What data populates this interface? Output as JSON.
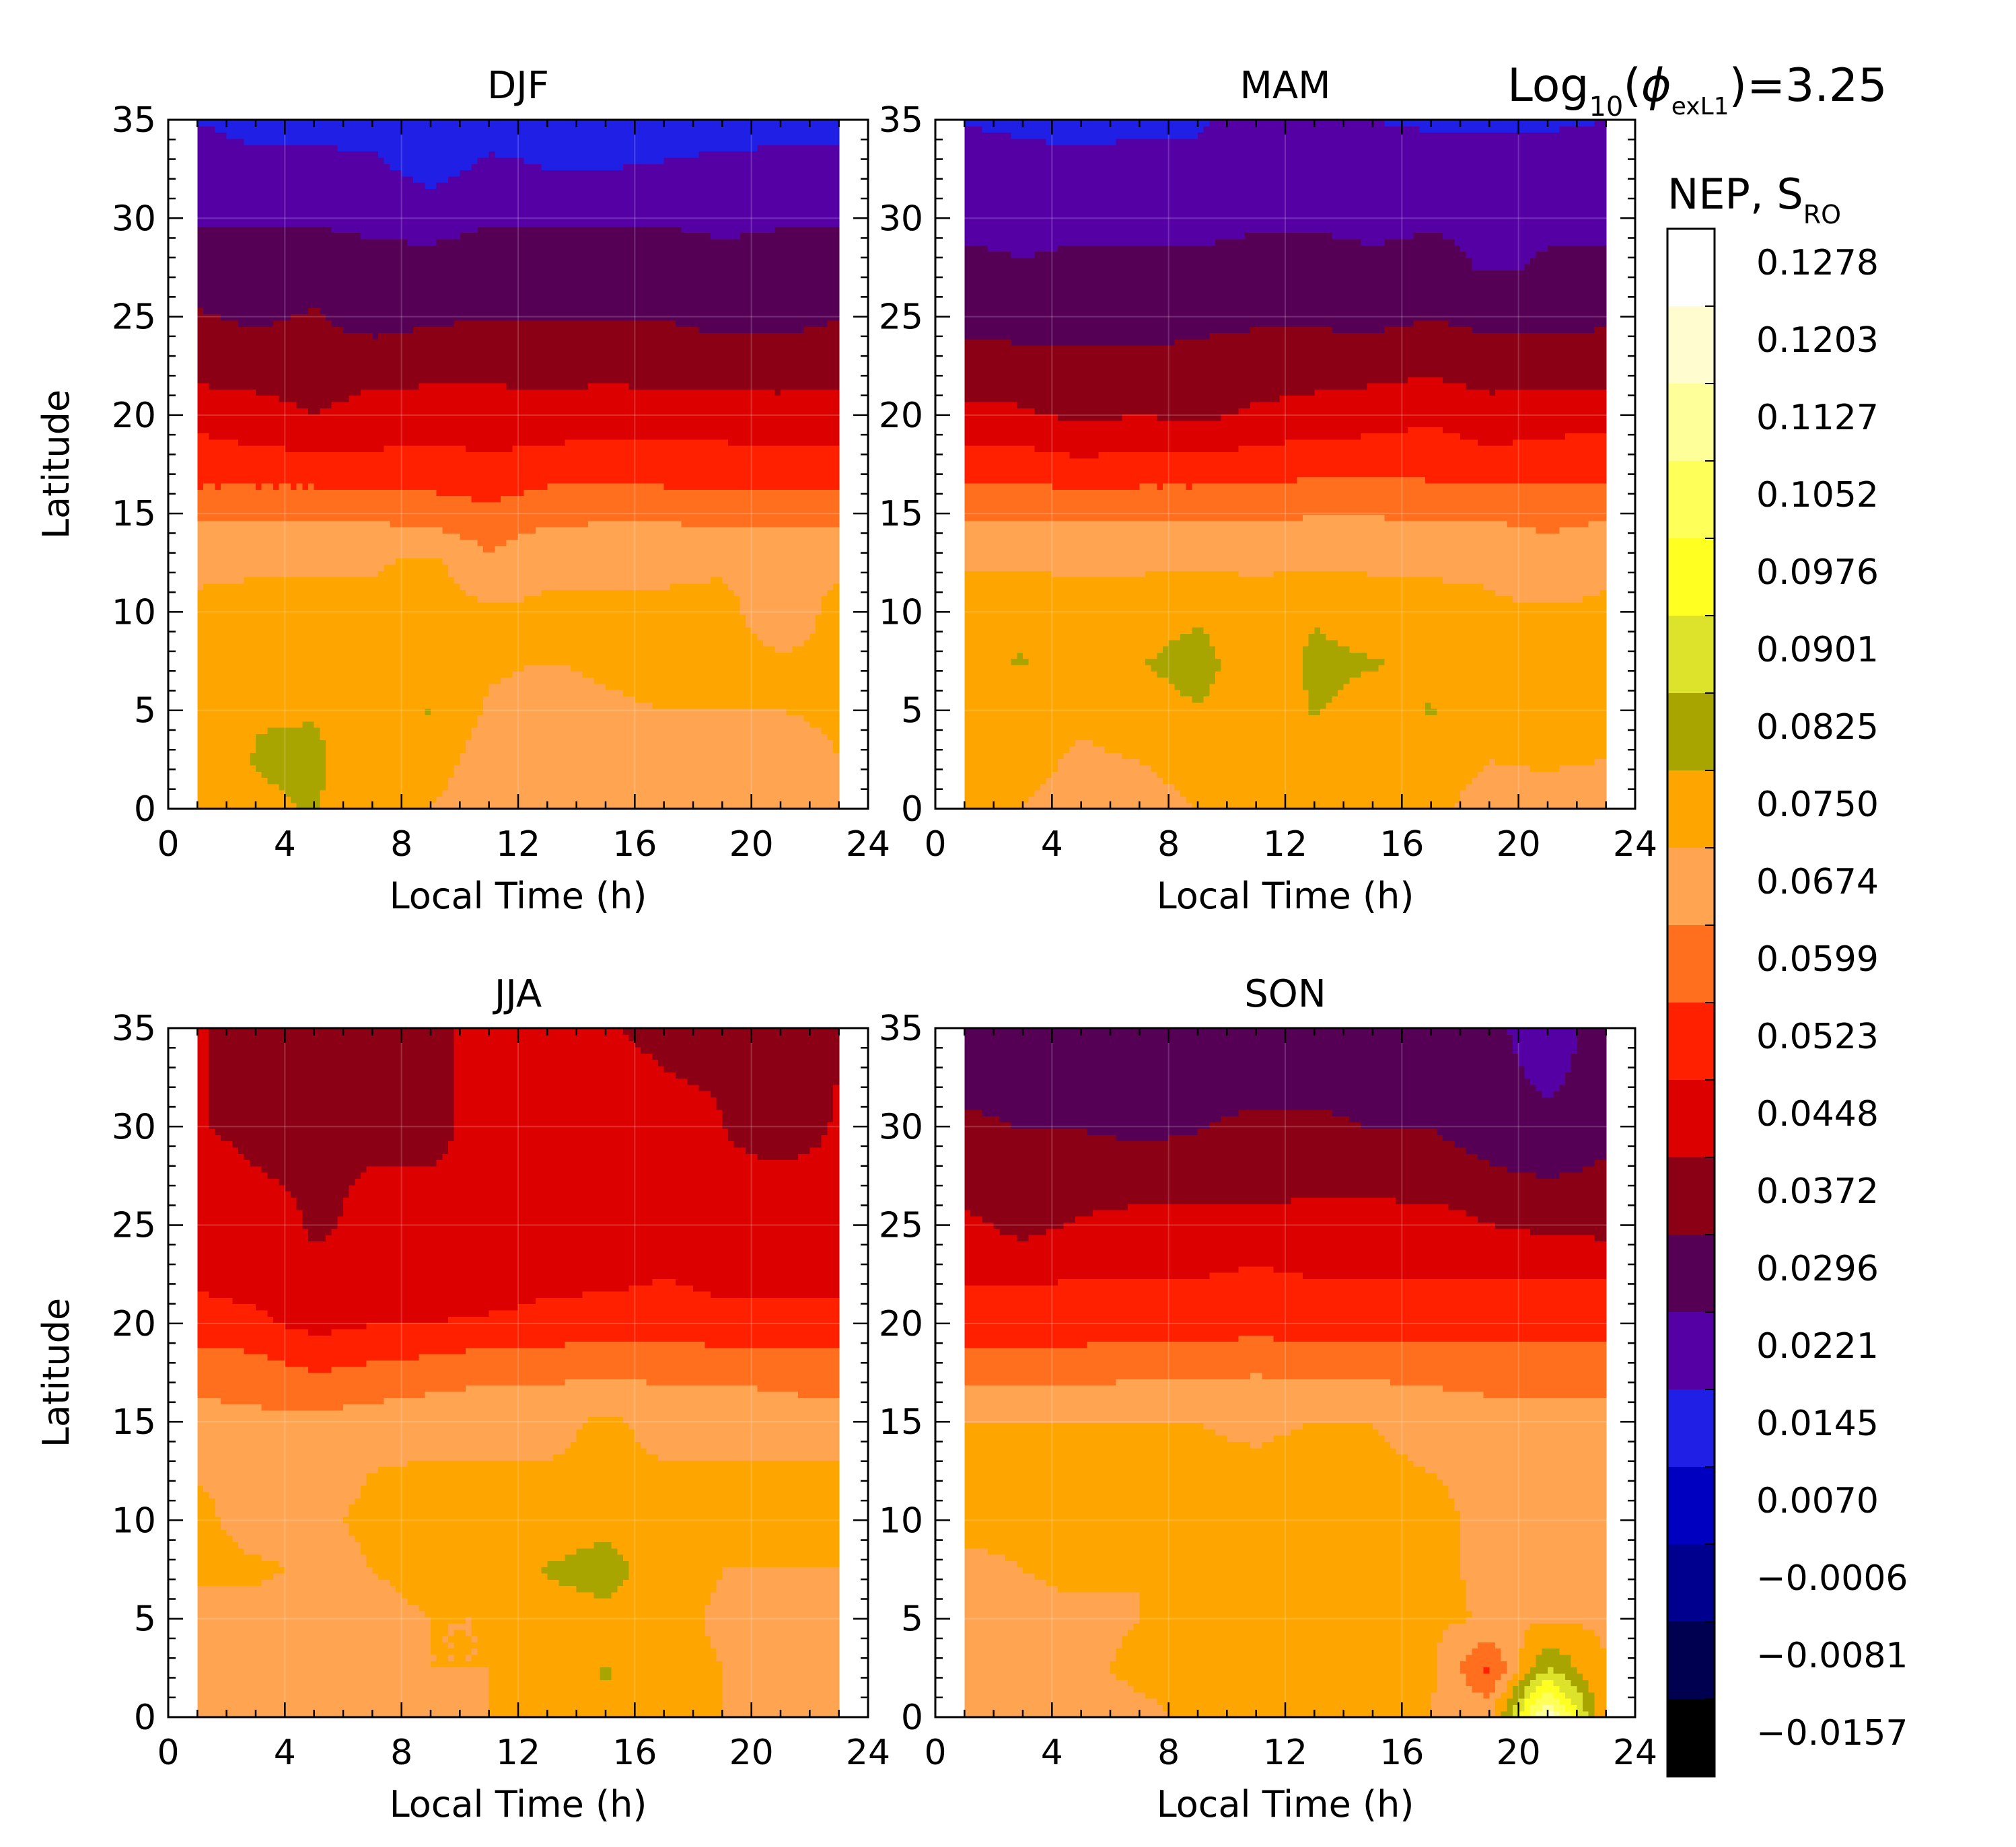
{
  "figure": {
    "annotation": {
      "prefix": "Log",
      "subscript": "10",
      "open": "(",
      "symbol": "ϕ",
      "symbol_sub": "exL1",
      "suffix": ")=3.25"
    },
    "colorbar_title": {
      "main": "NEP, S",
      "sub": "RO"
    }
  },
  "chart_data": [
    {
      "type": "heatmap",
      "title": "DJF",
      "xlabel": "Local Time (h)",
      "ylabel": "Latitude",
      "xlim": [
        0,
        24
      ],
      "ylim": [
        0,
        35
      ],
      "x_ticks": [
        "0",
        "4",
        "8",
        "12",
        "16",
        "20",
        "24"
      ],
      "y_ticks": [
        "0",
        "5",
        "10",
        "15",
        "20",
        "25",
        "30",
        "35"
      ],
      "x": [
        1,
        3,
        5,
        7,
        9,
        11,
        13,
        15,
        17,
        19,
        21,
        23
      ],
      "y": [
        0,
        2.5,
        5,
        7.5,
        10,
        12.5,
        15,
        17.5,
        20,
        22.5,
        25,
        27.5,
        30,
        32.5,
        35
      ],
      "z": [
        [
          0.075,
          0.081,
          0.083,
          0.077,
          0.075,
          0.07,
          0.072,
          0.074,
          0.071,
          0.074,
          0.07,
          0.075
        ],
        [
          0.076,
          0.083,
          0.084,
          0.078,
          0.079,
          0.071,
          0.07,
          0.073,
          0.073,
          0.074,
          0.072,
          0.075
        ],
        [
          0.077,
          0.082,
          0.082,
          0.079,
          0.083,
          0.074,
          0.072,
          0.074,
          0.075,
          0.075,
          0.075,
          0.076
        ],
        [
          0.076,
          0.078,
          0.079,
          0.078,
          0.078,
          0.076,
          0.075,
          0.076,
          0.077,
          0.077,
          0.076,
          0.076
        ],
        [
          0.076,
          0.077,
          0.077,
          0.077,
          0.078,
          0.076,
          0.076,
          0.076,
          0.076,
          0.077,
          0.071,
          0.077
        ],
        [
          0.074,
          0.074,
          0.074,
          0.074,
          0.077,
          0.069,
          0.074,
          0.074,
          0.074,
          0.074,
          0.073,
          0.074
        ],
        [
          0.066,
          0.066,
          0.066,
          0.066,
          0.064,
          0.062,
          0.065,
          0.066,
          0.066,
          0.065,
          0.065,
          0.065
        ],
        [
          0.055,
          0.055,
          0.055,
          0.054,
          0.055,
          0.053,
          0.056,
          0.056,
          0.055,
          0.055,
          0.055,
          0.054
        ],
        [
          0.051,
          0.048,
          0.045,
          0.048,
          0.049,
          0.049,
          0.047,
          0.049,
          0.05,
          0.049,
          0.048,
          0.05
        ],
        [
          0.041,
          0.041,
          0.04,
          0.042,
          0.042,
          0.042,
          0.043,
          0.042,
          0.041,
          0.041,
          0.041,
          0.041
        ],
        [
          0.038,
          0.036,
          0.038,
          0.034,
          0.036,
          0.037,
          0.037,
          0.037,
          0.037,
          0.035,
          0.035,
          0.037
        ],
        [
          0.033,
          0.032,
          0.033,
          0.032,
          0.032,
          0.033,
          0.033,
          0.034,
          0.033,
          0.032,
          0.032,
          0.033
        ],
        [
          0.029,
          0.029,
          0.029,
          0.028,
          0.027,
          0.029,
          0.029,
          0.029,
          0.029,
          0.028,
          0.029,
          0.029
        ],
        [
          0.025,
          0.024,
          0.024,
          0.024,
          0.019,
          0.024,
          0.022,
          0.022,
          0.023,
          0.024,
          0.024,
          0.024
        ],
        [
          0.022,
          0.02,
          0.02,
          0.019,
          0.018,
          0.018,
          0.019,
          0.018,
          0.018,
          0.019,
          0.02,
          0.02
        ]
      ]
    },
    {
      "type": "heatmap",
      "title": "MAM",
      "xlabel": "Local Time (h)",
      "ylabel": "",
      "xlim": [
        0,
        24
      ],
      "ylim": [
        0,
        35
      ],
      "x_ticks": [
        "0",
        "4",
        "8",
        "12",
        "16",
        "20",
        "24"
      ],
      "y_ticks": [
        "0",
        "5",
        "10",
        "15",
        "20",
        "25",
        "30",
        "35"
      ],
      "x": [
        1,
        3,
        5,
        7,
        9,
        11,
        13,
        15,
        17,
        19,
        21,
        23
      ],
      "y": [
        0,
        2.5,
        5,
        7.5,
        10,
        12.5,
        15,
        17.5,
        20,
        22.5,
        25,
        27.5,
        30,
        32.5,
        35
      ],
      "z": [
        [
          0.075,
          0.075,
          0.072,
          0.073,
          0.075,
          0.077,
          0.076,
          0.076,
          0.076,
          0.073,
          0.071,
          0.071
        ],
        [
          0.076,
          0.077,
          0.074,
          0.075,
          0.077,
          0.077,
          0.078,
          0.077,
          0.078,
          0.075,
          0.076,
          0.075
        ],
        [
          0.077,
          0.08,
          0.076,
          0.079,
          0.082,
          0.078,
          0.083,
          0.08,
          0.083,
          0.076,
          0.076,
          0.076
        ],
        [
          0.08,
          0.083,
          0.076,
          0.082,
          0.086,
          0.077,
          0.084,
          0.083,
          0.081,
          0.077,
          0.076,
          0.076
        ],
        [
          0.079,
          0.08,
          0.077,
          0.078,
          0.081,
          0.077,
          0.082,
          0.078,
          0.077,
          0.076,
          0.076,
          0.076
        ],
        [
          0.074,
          0.074,
          0.074,
          0.074,
          0.074,
          0.074,
          0.074,
          0.074,
          0.074,
          0.074,
          0.069,
          0.074
        ],
        [
          0.066,
          0.066,
          0.066,
          0.066,
          0.066,
          0.066,
          0.067,
          0.067,
          0.066,
          0.066,
          0.066,
          0.066
        ],
        [
          0.056,
          0.056,
          0.054,
          0.055,
          0.055,
          0.056,
          0.057,
          0.057,
          0.057,
          0.055,
          0.056,
          0.057
        ],
        [
          0.047,
          0.046,
          0.043,
          0.045,
          0.043,
          0.046,
          0.048,
          0.049,
          0.051,
          0.048,
          0.049,
          0.05
        ],
        [
          0.04,
          0.04,
          0.039,
          0.039,
          0.04,
          0.041,
          0.041,
          0.042,
          0.043,
          0.041,
          0.041,
          0.041
        ],
        [
          0.035,
          0.034,
          0.034,
          0.034,
          0.035,
          0.036,
          0.036,
          0.035,
          0.037,
          0.035,
          0.035,
          0.036
        ],
        [
          0.031,
          0.03,
          0.031,
          0.031,
          0.031,
          0.031,
          0.031,
          0.03,
          0.031,
          0.029,
          0.03,
          0.03
        ],
        [
          0.028,
          0.028,
          0.028,
          0.028,
          0.028,
          0.029,
          0.029,
          0.029,
          0.029,
          0.029,
          0.029,
          0.029
        ],
        [
          0.024,
          0.024,
          0.024,
          0.024,
          0.024,
          0.027,
          0.025,
          0.026,
          0.026,
          0.026,
          0.026,
          0.026
        ],
        [
          0.022,
          0.021,
          0.02,
          0.021,
          0.021,
          0.026,
          0.022,
          0.022,
          0.021,
          0.021,
          0.021,
          0.022
        ]
      ]
    },
    {
      "type": "heatmap",
      "title": "JJA",
      "xlabel": "Local Time (h)",
      "ylabel": "Latitude",
      "xlim": [
        0,
        24
      ],
      "ylim": [
        0,
        35
      ],
      "x_ticks": [
        "0",
        "4",
        "8",
        "12",
        "16",
        "20",
        "24"
      ],
      "y_ticks": [
        "0",
        "5",
        "10",
        "15",
        "20",
        "25",
        "30",
        "35"
      ],
      "x": [
        1,
        3,
        5,
        7,
        9,
        11,
        13,
        15,
        17,
        19,
        21,
        23
      ],
      "y": [
        0,
        2.5,
        5,
        7.5,
        10,
        12.5,
        15,
        17.5,
        20,
        22.5,
        25,
        27.5,
        30,
        32.5,
        35
      ],
      "z": [
        [
          0.069,
          0.07,
          0.07,
          0.072,
          0.074,
          0.075,
          0.077,
          0.082,
          0.076,
          0.075,
          0.072,
          0.071
        ],
        [
          0.069,
          0.072,
          0.07,
          0.071,
          0.075,
          0.075,
          0.077,
          0.083,
          0.077,
          0.075,
          0.071,
          0.072
        ],
        [
          0.07,
          0.071,
          0.071,
          0.074,
          0.075,
          0.075,
          0.079,
          0.08,
          0.077,
          0.074,
          0.071,
          0.072
        ],
        [
          0.078,
          0.077,
          0.073,
          0.075,
          0.076,
          0.077,
          0.083,
          0.086,
          0.078,
          0.075,
          0.075,
          0.075
        ],
        [
          0.078,
          0.07,
          0.074,
          0.076,
          0.076,
          0.076,
          0.078,
          0.08,
          0.077,
          0.076,
          0.076,
          0.076
        ],
        [
          0.074,
          0.072,
          0.073,
          0.075,
          0.076,
          0.076,
          0.076,
          0.076,
          0.076,
          0.076,
          0.076,
          0.076
        ],
        [
          0.069,
          0.069,
          0.069,
          0.071,
          0.072,
          0.072,
          0.072,
          0.077,
          0.072,
          0.071,
          0.07,
          0.07
        ],
        [
          0.066,
          0.064,
          0.06,
          0.062,
          0.064,
          0.066,
          0.066,
          0.066,
          0.066,
          0.066,
          0.066,
          0.064
        ],
        [
          0.055,
          0.054,
          0.05,
          0.052,
          0.052,
          0.054,
          0.055,
          0.056,
          0.056,
          0.055,
          0.055,
          0.055
        ],
        [
          0.051,
          0.049,
          0.046,
          0.046,
          0.049,
          0.046,
          0.05,
          0.05,
          0.052,
          0.05,
          0.05,
          0.05
        ],
        [
          0.049,
          0.048,
          0.044,
          0.046,
          0.05,
          0.047,
          0.051,
          0.05,
          0.051,
          0.05,
          0.05,
          0.05
        ],
        [
          0.046,
          0.045,
          0.044,
          0.045,
          0.045,
          0.045,
          0.049,
          0.049,
          0.048,
          0.047,
          0.047,
          0.047
        ],
        [
          0.045,
          0.044,
          0.044,
          0.044,
          0.044,
          0.046,
          0.05,
          0.049,
          0.049,
          0.045,
          0.039,
          0.046
        ],
        [
          0.045,
          0.044,
          0.044,
          0.044,
          0.044,
          0.046,
          0.05,
          0.046,
          0.045,
          0.044,
          0.038,
          0.045
        ],
        [
          0.045,
          0.044,
          0.044,
          0.044,
          0.044,
          0.046,
          0.046,
          0.045,
          0.044,
          0.043,
          0.037,
          0.044
        ]
      ]
    },
    {
      "type": "heatmap",
      "title": "SON",
      "xlabel": "Local Time (h)",
      "ylabel": "",
      "xlim": [
        0,
        24
      ],
      "ylim": [
        0,
        35
      ],
      "x_ticks": [
        "0",
        "4",
        "8",
        "12",
        "16",
        "20",
        "24"
      ],
      "y_ticks": [
        "0",
        "5",
        "10",
        "15",
        "20",
        "25",
        "30",
        "35"
      ],
      "x": [
        1,
        3,
        5,
        7,
        9,
        11,
        13,
        15,
        17,
        19,
        21,
        23
      ],
      "y": [
        0,
        2.5,
        5,
        7.5,
        10,
        12.5,
        15,
        17.5,
        20,
        22.5,
        25,
        27.5,
        30,
        32.5,
        35
      ],
      "z": [
        [
          0.073,
          0.072,
          0.073,
          0.074,
          0.076,
          0.076,
          0.076,
          0.076,
          0.075,
          0.073,
          0.125,
          0.074
        ],
        [
          0.074,
          0.069,
          0.074,
          0.076,
          0.076,
          0.076,
          0.076,
          0.077,
          0.076,
          0.058,
          0.09,
          0.075
        ],
        [
          0.074,
          0.074,
          0.074,
          0.075,
          0.076,
          0.076,
          0.077,
          0.077,
          0.077,
          0.074,
          0.074,
          0.074
        ],
        [
          0.074,
          0.075,
          0.076,
          0.075,
          0.076,
          0.076,
          0.077,
          0.076,
          0.076,
          0.074,
          0.074,
          0.074
        ],
        [
          0.076,
          0.076,
          0.076,
          0.076,
          0.076,
          0.076,
          0.076,
          0.076,
          0.076,
          0.074,
          0.074,
          0.074
        ],
        [
          0.08,
          0.076,
          0.076,
          0.076,
          0.076,
          0.076,
          0.077,
          0.076,
          0.075,
          0.074,
          0.074,
          0.074
        ],
        [
          0.075,
          0.075,
          0.075,
          0.075,
          0.075,
          0.074,
          0.075,
          0.075,
          0.073,
          0.07,
          0.07,
          0.07
        ],
        [
          0.065,
          0.065,
          0.065,
          0.066,
          0.066,
          0.067,
          0.066,
          0.066,
          0.065,
          0.065,
          0.065,
          0.065
        ],
        [
          0.056,
          0.056,
          0.056,
          0.057,
          0.057,
          0.057,
          0.057,
          0.057,
          0.057,
          0.057,
          0.057,
          0.057
        ],
        [
          0.051,
          0.051,
          0.052,
          0.052,
          0.052,
          0.053,
          0.052,
          0.052,
          0.052,
          0.052,
          0.052,
          0.052
        ],
        [
          0.047,
          0.042,
          0.046,
          0.048,
          0.049,
          0.049,
          0.049,
          0.049,
          0.049,
          0.045,
          0.043,
          0.042
        ],
        [
          0.04,
          0.04,
          0.04,
          0.04,
          0.039,
          0.04,
          0.041,
          0.041,
          0.04,
          0.038,
          0.037,
          0.038
        ],
        [
          0.038,
          0.037,
          0.037,
          0.036,
          0.037,
          0.038,
          0.038,
          0.037,
          0.037,
          0.035,
          0.033,
          0.036
        ],
        [
          0.036,
          0.036,
          0.036,
          0.036,
          0.036,
          0.036,
          0.036,
          0.036,
          0.035,
          0.034,
          0.027,
          0.035
        ],
        [
          0.036,
          0.036,
          0.034,
          0.035,
          0.036,
          0.036,
          0.036,
          0.036,
          0.035,
          0.032,
          0.024,
          0.034
        ]
      ]
    }
  ],
  "colorbar": {
    "labels": [
      "0.1278",
      "0.1203",
      "0.1127",
      "0.1052",
      "0.0976",
      "0.0901",
      "0.0825",
      "0.0750",
      "0.0674",
      "0.0599",
      "0.0523",
      "0.0448",
      "0.0372",
      "0.0296",
      "0.0221",
      "0.0145",
      "0.0070",
      "−0.0006",
      "−0.0081",
      "−0.0157"
    ],
    "levels": [
      0.1278,
      0.1203,
      0.1127,
      0.1052,
      0.0976,
      0.0901,
      0.0825,
      0.075,
      0.0674,
      0.0599,
      0.0523,
      0.0448,
      0.0372,
      0.0296,
      0.0221,
      0.0145,
      0.007,
      -0.0006,
      -0.0081,
      -0.0157
    ],
    "colors": [
      "#ffffff",
      "#fffccf",
      "#ffff99",
      "#ffff5a",
      "#ffff22",
      "#dde32b",
      "#a8a400",
      "#ffa500",
      "#ffa552",
      "#ff6f1e",
      "#ff2000",
      "#dd0000",
      "#8b0014",
      "#550055",
      "#5500a5",
      "#1f1fe5",
      "#0000c0",
      "#00008f",
      "#000050",
      "#000000"
    ]
  }
}
